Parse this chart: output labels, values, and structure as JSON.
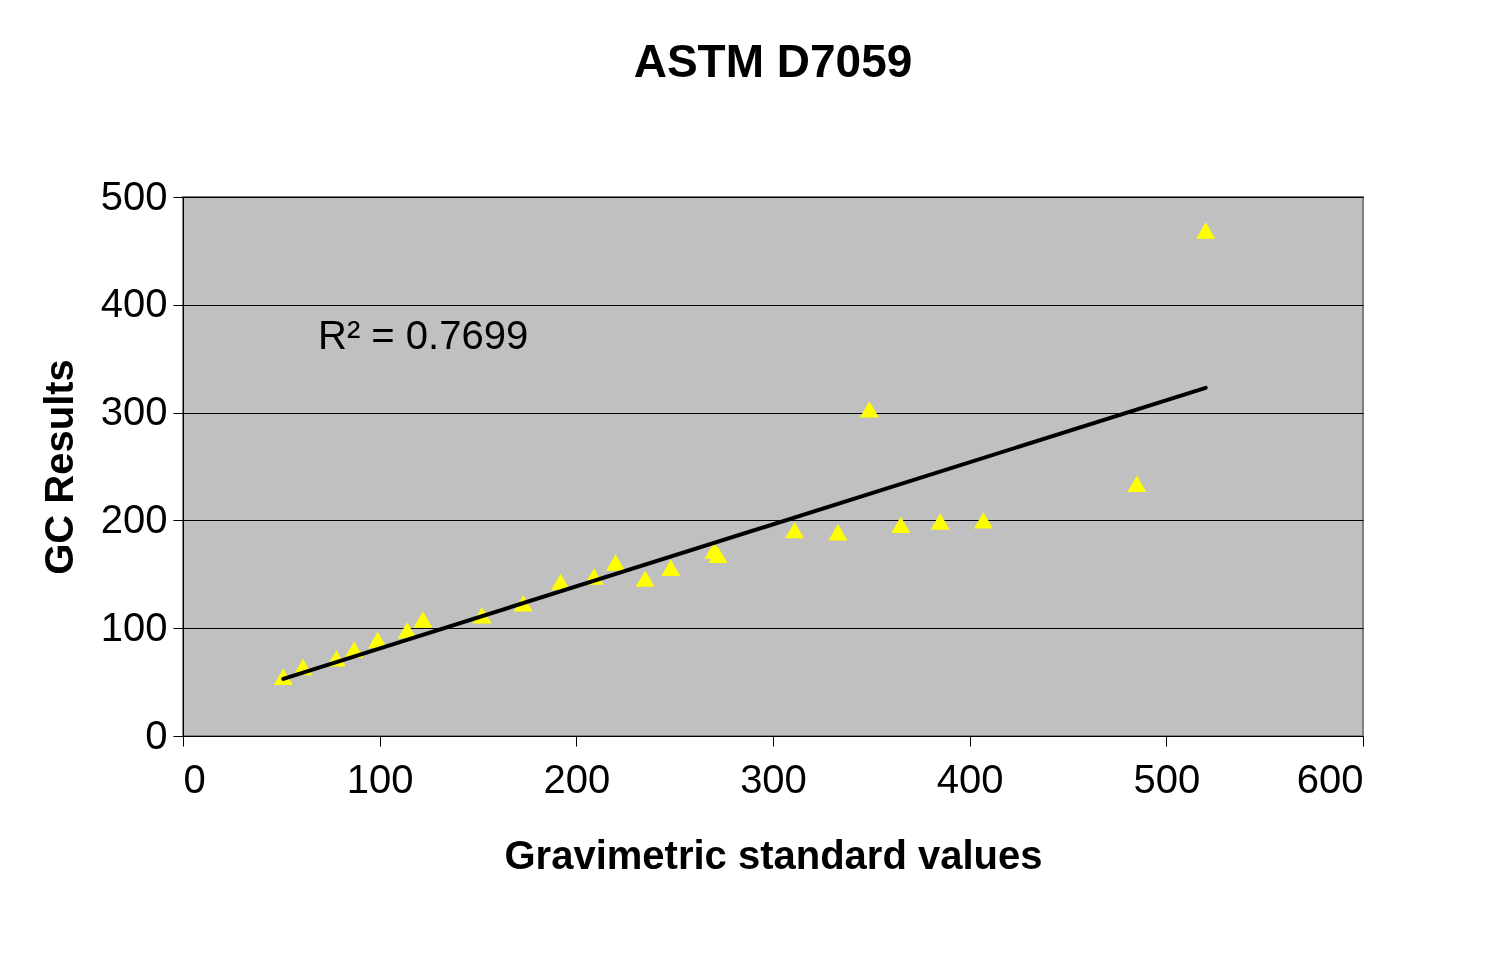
{
  "chart_data": {
    "type": "scatter",
    "title": "ASTM D7059",
    "xlabel": "Gravimetric standard values",
    "ylabel": "GC Results",
    "xlim": [
      0,
      600
    ],
    "ylim": [
      0,
      500
    ],
    "xticks": [
      0,
      100,
      200,
      300,
      400,
      500,
      600
    ],
    "yticks": [
      0,
      100,
      200,
      300,
      400,
      500
    ],
    "grid": "y",
    "marker": "triangle",
    "annotations": [
      "R² = 0.7699"
    ],
    "series": [
      {
        "color": "#ffff00",
        "x": [
          51,
          61,
          78,
          87,
          99,
          114,
          122,
          152,
          173,
          192,
          209,
          220,
          235,
          248,
          270,
          272,
          311,
          333,
          349,
          365,
          385,
          407,
          485,
          520
        ],
        "values": [
          55,
          64,
          72,
          80,
          89,
          98,
          108,
          112,
          123,
          143,
          148,
          161,
          146,
          156,
          172,
          168,
          191,
          189,
          303,
          196,
          199,
          200,
          234,
          469
        ]
      },
      {
        "type": "line",
        "marker": "none",
        "color": "#000000",
        "x": [
          51,
          520
        ],
        "values": [
          53,
          323
        ]
      }
    ]
  }
}
